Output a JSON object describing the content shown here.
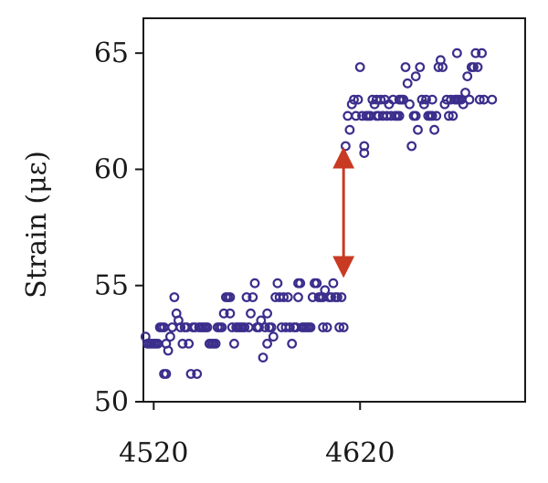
{
  "chart_data": {
    "type": "scatter",
    "ylabel": "Strain (με)",
    "xlabel": "",
    "xlim": [
      4515,
      4700
    ],
    "ylim": [
      50,
      66.5
    ],
    "xticks": [
      4520,
      4620
    ],
    "yticks": [
      50,
      55,
      60,
      65
    ],
    "grid": false,
    "colors": {
      "points": "#3b2e8c",
      "arrow": "#c83a22",
      "axis": "#1a1a1a"
    },
    "annotation": {
      "type": "double-arrow",
      "x": 4612,
      "y_from": 55.8,
      "y_to": 60.5
    },
    "series": [
      {
        "values": [
          [
            4516,
            52.8
          ],
          [
            4517,
            52.5
          ],
          [
            4518,
            52.5
          ],
          [
            4519,
            52.5
          ],
          [
            4520,
            52.5
          ],
          [
            4521,
            52.5
          ],
          [
            4522,
            52.5
          ],
          [
            4523,
            53.2
          ],
          [
            4524,
            53.2
          ],
          [
            4525,
            53.2
          ],
          [
            4525,
            51.2
          ],
          [
            4526,
            51.2
          ],
          [
            4526,
            52.5
          ],
          [
            4527,
            52.2
          ],
          [
            4528,
            52.8
          ],
          [
            4529,
            53.2
          ],
          [
            4530,
            54.5
          ],
          [
            4531,
            53.8
          ],
          [
            4532,
            53.5
          ],
          [
            4533,
            53.2
          ],
          [
            4534,
            52.5
          ],
          [
            4535,
            53.2
          ],
          [
            4536,
            53.2
          ],
          [
            4537,
            52.5
          ],
          [
            4538,
            51.2
          ],
          [
            4539,
            53.2
          ],
          [
            4540,
            53.2
          ],
          [
            4541,
            51.2
          ],
          [
            4542,
            53.2
          ],
          [
            4543,
            53.2
          ],
          [
            4544,
            53.2
          ],
          [
            4545,
            53.2
          ],
          [
            4546,
            53.2
          ],
          [
            4547,
            52.5
          ],
          [
            4548,
            52.5
          ],
          [
            4549,
            52.5
          ],
          [
            4550,
            52.5
          ],
          [
            4551,
            53.2
          ],
          [
            4552,
            53.2
          ],
          [
            4553,
            53.2
          ],
          [
            4554,
            53.8
          ],
          [
            4555,
            54.5
          ],
          [
            4556,
            54.5
          ],
          [
            4557,
            54.5
          ],
          [
            4557,
            53.8
          ],
          [
            4558,
            53.2
          ],
          [
            4559,
            52.5
          ],
          [
            4560,
            53.2
          ],
          [
            4561,
            53.2
          ],
          [
            4562,
            53.2
          ],
          [
            4563,
            53.2
          ],
          [
            4564,
            53.2
          ],
          [
            4565,
            54.5
          ],
          [
            4566,
            53.2
          ],
          [
            4567,
            53.8
          ],
          [
            4568,
            54.5
          ],
          [
            4569,
            55.1
          ],
          [
            4570,
            53.2
          ],
          [
            4571,
            53.2
          ],
          [
            4572,
            53.5
          ],
          [
            4573,
            51.9
          ],
          [
            4574,
            53.2
          ],
          [
            4575,
            53.8
          ],
          [
            4575,
            52.5
          ],
          [
            4576,
            53.2
          ],
          [
            4577,
            53.2
          ],
          [
            4578,
            52.8
          ],
          [
            4579,
            54.5
          ],
          [
            4580,
            55.1
          ],
          [
            4581,
            54.5
          ],
          [
            4582,
            53.2
          ],
          [
            4583,
            54.5
          ],
          [
            4584,
            53.2
          ],
          [
            4585,
            54.5
          ],
          [
            4586,
            53.2
          ],
          [
            4587,
            52.5
          ],
          [
            4588,
            53.2
          ],
          [
            4589,
            53.2
          ],
          [
            4590,
            55.1
          ],
          [
            4590,
            54.5
          ],
          [
            4591,
            55.1
          ],
          [
            4592,
            53.2
          ],
          [
            4593,
            53.2
          ],
          [
            4594,
            53.2
          ],
          [
            4595,
            53.2
          ],
          [
            4596,
            53.2
          ],
          [
            4597,
            54.5
          ],
          [
            4598,
            55.1
          ],
          [
            4599,
            55.1
          ],
          [
            4600,
            54.5
          ],
          [
            4601,
            54.5
          ],
          [
            4602,
            54.5
          ],
          [
            4602,
            53.2
          ],
          [
            4603,
            54.8
          ],
          [
            4604,
            53.2
          ],
          [
            4605,
            54.5
          ],
          [
            4606,
            54.5
          ],
          [
            4607,
            55.1
          ],
          [
            4608,
            54.5
          ],
          [
            4609,
            54.5
          ],
          [
            4610,
            53.2
          ],
          [
            4611,
            54.5
          ],
          [
            4612,
            53.2
          ],
          [
            4613,
            61.0
          ],
          [
            4614,
            62.3
          ],
          [
            4615,
            61.7
          ],
          [
            4616,
            62.8
          ],
          [
            4617,
            63.0
          ],
          [
            4618,
            62.3
          ],
          [
            4619,
            63.0
          ],
          [
            4620,
            64.4
          ],
          [
            4621,
            62.3
          ],
          [
            4622,
            61.0
          ],
          [
            4622,
            60.7
          ],
          [
            4623,
            62.3
          ],
          [
            4624,
            62.3
          ],
          [
            4625,
            62.3
          ],
          [
            4626,
            63.0
          ],
          [
            4627,
            62.8
          ],
          [
            4628,
            63.0
          ],
          [
            4629,
            62.3
          ],
          [
            4630,
            63.0
          ],
          [
            4631,
            62.3
          ],
          [
            4632,
            63.0
          ],
          [
            4633,
            62.3
          ],
          [
            4634,
            62.8
          ],
          [
            4635,
            62.3
          ],
          [
            4636,
            63.0
          ],
          [
            4637,
            62.3
          ],
          [
            4638,
            62.3
          ],
          [
            4639,
            63.0
          ],
          [
            4640,
            63.0
          ],
          [
            4641,
            63.0
          ],
          [
            4642,
            64.4
          ],
          [
            4643,
            63.7
          ],
          [
            4644,
            62.8
          ],
          [
            4645,
            61.0
          ],
          [
            4646,
            62.3
          ],
          [
            4647,
            62.3
          ],
          [
            4648,
            61.7
          ],
          [
            4649,
            64.4
          ],
          [
            4650,
            63.0
          ],
          [
            4651,
            62.8
          ],
          [
            4652,
            63.0
          ],
          [
            4653,
            62.3
          ],
          [
            4654,
            62.3
          ],
          [
            4655,
            62.3
          ],
          [
            4656,
            61.7
          ],
          [
            4657,
            62.3
          ],
          [
            4658,
            64.4
          ],
          [
            4659,
            64.7
          ],
          [
            4660,
            64.4
          ],
          [
            4661,
            62.8
          ],
          [
            4662,
            63.0
          ],
          [
            4663,
            62.3
          ],
          [
            4664,
            63.0
          ],
          [
            4665,
            62.3
          ],
          [
            4666,
            63.0
          ],
          [
            4667,
            65.0
          ],
          [
            4668,
            63.0
          ],
          [
            4669,
            63.0
          ],
          [
            4670,
            62.8
          ],
          [
            4671,
            63.3
          ],
          [
            4672,
            64.0
          ],
          [
            4673,
            63.0
          ],
          [
            4674,
            64.4
          ],
          [
            4675,
            64.4
          ],
          [
            4676,
            65.0
          ],
          [
            4677,
            64.4
          ],
          [
            4678,
            63.0
          ],
          [
            4679,
            65.0
          ],
          [
            4680,
            63.0
          ],
          [
            4647,
            64.0
          ],
          [
            4667,
            63.0
          ],
          [
            4655,
            63.0
          ],
          [
            4639,
            62.3
          ],
          [
            4628,
            62.3
          ],
          [
            4684,
            63.0
          ]
        ]
      }
    ]
  }
}
